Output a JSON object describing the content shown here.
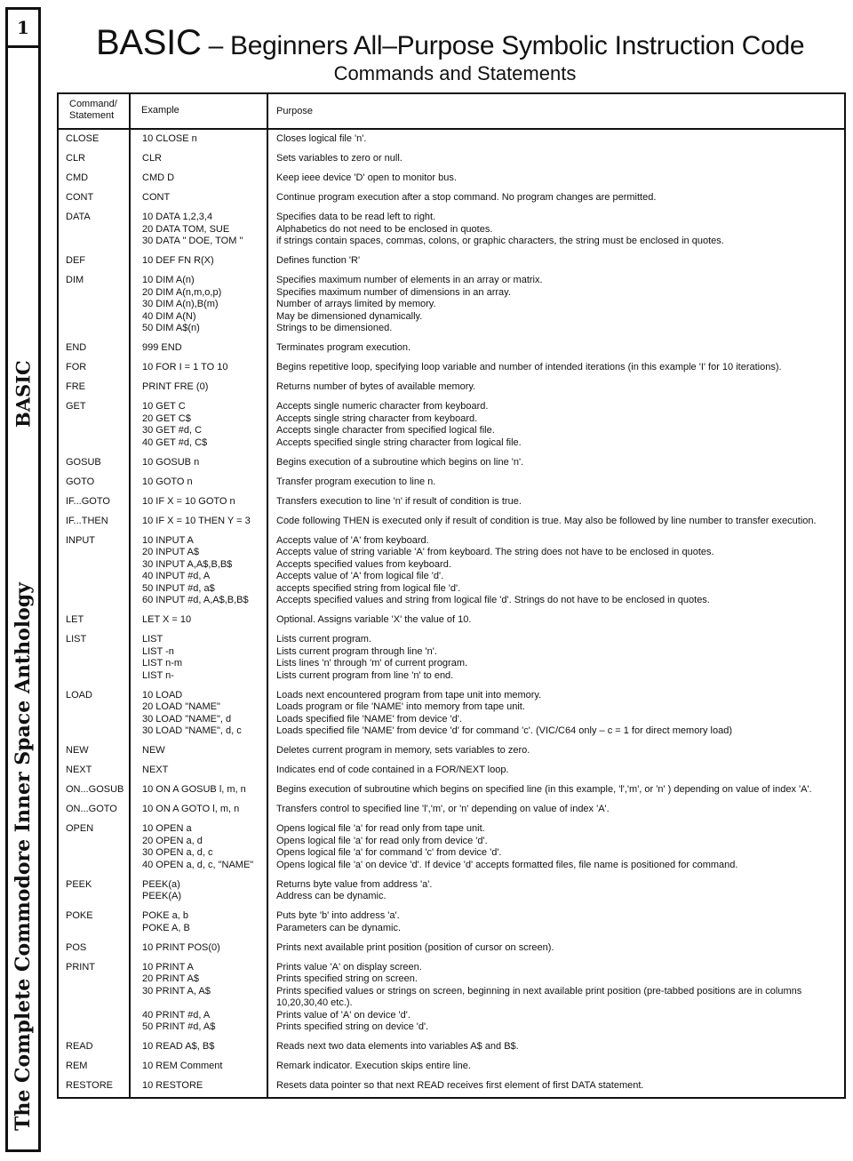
{
  "sidebar": {
    "page_number": "1",
    "section": "BASIC",
    "book_title": "The Complete Commodore Inner Space Anthology"
  },
  "header": {
    "title_main": "BASIC",
    "title_rest": " – Beginners All–Purpose Symbolic Instruction Code",
    "subtitle": "Commands and Statements"
  },
  "table": {
    "columns": [
      "Command/ Statement",
      "Example",
      "Purpose"
    ],
    "rows": [
      {
        "cmd": "CLOSE",
        "example": [
          "10 CLOSE n"
        ],
        "purpose": [
          "Closes logical file 'n'."
        ]
      },
      {
        "cmd": "CLR",
        "example": [
          "CLR"
        ],
        "purpose": [
          "Sets variables to zero or null."
        ]
      },
      {
        "cmd": "CMD",
        "example": [
          "CMD D"
        ],
        "purpose": [
          "Keep ieee device 'D' open to monitor bus."
        ]
      },
      {
        "cmd": "CONT",
        "example": [
          "CONT"
        ],
        "purpose": [
          "Continue program execution after a stop command. No program changes are permitted."
        ]
      },
      {
        "cmd": "DATA",
        "example": [
          "10 DATA 1,2,3,4",
          "20 DATA TOM, SUE",
          "30 DATA \" DOE, TOM \""
        ],
        "purpose": [
          "Specifies data to be read left to right.",
          "Alphabetics do not need to be enclosed in quotes.",
          "if strings contain spaces, commas, colons, or graphic characters, the string must be enclosed in quotes."
        ]
      },
      {
        "cmd": "DEF",
        "example": [
          "10 DEF FN R(X)"
        ],
        "purpose": [
          "Defines function 'R'"
        ]
      },
      {
        "cmd": "DIM",
        "example": [
          "10 DIM A(n)",
          "20 DIM A(n,m,o,p)",
          "30 DIM A(n),B(m)",
          "40 DIM A(N)",
          "50 DIM A$(n)"
        ],
        "purpose": [
          "Specifies maximum number of elements in an array or matrix.",
          "Specifies maximum number of dimensions in an array.",
          "Number of arrays limited by memory.",
          "May be dimensioned dynamically.",
          "Strings to be dimensioned."
        ]
      },
      {
        "cmd": "END",
        "example": [
          "999 END"
        ],
        "purpose": [
          "Terminates program execution."
        ]
      },
      {
        "cmd": "FOR",
        "example": [
          "10 FOR I = 1 TO 10"
        ],
        "purpose": [
          "Begins repetitive loop, specifying loop variable and number of intended iterations (in this example 'I' for 10 iterations)."
        ]
      },
      {
        "cmd": "FRE",
        "example": [
          "PRINT FRE (0)"
        ],
        "purpose": [
          "Returns number of bytes of available memory."
        ]
      },
      {
        "cmd": "GET",
        "example": [
          "10 GET C",
          "20 GET C$",
          "30 GET #d, C",
          "40 GET #d, C$"
        ],
        "purpose": [
          "Accepts single numeric character from keyboard.",
          "Accepts single string character from keyboard.",
          "Accepts single character from specified logical file.",
          "Accepts specified single string character from logical file."
        ]
      },
      {
        "cmd": "GOSUB",
        "example": [
          "10 GOSUB n"
        ],
        "purpose": [
          "Begins execution of a subroutine which begins on line 'n'."
        ]
      },
      {
        "cmd": "GOTO",
        "example": [
          "10 GOTO n"
        ],
        "purpose": [
          "Transfer program execution to line n."
        ]
      },
      {
        "cmd": "IF...GOTO",
        "example": [
          "10 IF X = 10 GOTO n"
        ],
        "purpose": [
          "Transfers execution to line 'n' if result of condition is true."
        ]
      },
      {
        "cmd": "IF...THEN",
        "example": [
          "10 IF X = 10 THEN Y = 3"
        ],
        "purpose": [
          "Code following THEN is executed only if result of condition is true. May also be followed by line number to transfer execution."
        ]
      },
      {
        "cmd": "INPUT",
        "example": [
          "10 INPUT A",
          "20 INPUT A$",
          "30 INPUT A,A$,B,B$",
          "40 INPUT #d, A",
          "50 INPUT #d, a$",
          "60 INPUT #d, A,A$,B,B$"
        ],
        "purpose": [
          "Accepts value of 'A' from keyboard.",
          "Accepts value of string variable 'A' from keyboard. The string does not have to be enclosed in quotes.",
          "Accepts specified values from keyboard.",
          "Accepts value of 'A' from logical file 'd'.",
          "accepts specified string from logical file 'd'.",
          "Accepts specified values and string from logical file 'd'. Strings do not have to be enclosed in quotes."
        ]
      },
      {
        "cmd": "LET",
        "example": [
          "LET X = 10"
        ],
        "purpose": [
          "Optional. Assigns variable 'X' the value of 10."
        ]
      },
      {
        "cmd": "LIST",
        "example": [
          "LIST",
          "LIST -n",
          "LIST n-m",
          "LIST n-"
        ],
        "purpose": [
          "Lists current program.",
          "Lists current program through line 'n'.",
          "Lists lines 'n' through 'm' of current program.",
          "Lists current program from line 'n' to end."
        ]
      },
      {
        "cmd": "LOAD",
        "example": [
          "10 LOAD",
          "20 LOAD \"NAME\"",
          "30 LOAD \"NAME\", d",
          "30 LOAD \"NAME\", d, c"
        ],
        "purpose": [
          "Loads next encountered program from tape unit into memory.",
          "Loads program or file 'NAME' into memory from tape unit.",
          "Loads specified file 'NAME' from device 'd'.",
          "Loads specified file 'NAME' from device 'd' for command 'c'. (VIC/C64 only – c = 1 for direct memory load)"
        ]
      },
      {
        "cmd": "NEW",
        "example": [
          "NEW"
        ],
        "purpose": [
          "Deletes current program in memory, sets variables to zero."
        ]
      },
      {
        "cmd": "NEXT",
        "example": [
          "NEXT"
        ],
        "purpose": [
          "Indicates end of code contained in a FOR/NEXT loop."
        ]
      },
      {
        "cmd": "ON...GOSUB",
        "example": [
          "10 ON A GOSUB l, m, n"
        ],
        "purpose": [
          "Begins execution of subroutine which begins on specified line (in this example, 'l','m', or 'n' ) depending on value of index 'A'."
        ]
      },
      {
        "cmd": "ON...GOTO",
        "example": [
          "10 ON A GOTO l, m, n"
        ],
        "purpose": [
          "Transfers control to specified line 'l','m', or 'n' depending on value of index 'A'."
        ]
      },
      {
        "cmd": "OPEN",
        "example": [
          "10 OPEN a",
          "20 OPEN a, d",
          "30 OPEN a, d, c",
          "40 OPEN a, d, c, \"NAME\""
        ],
        "purpose": [
          "Opens logical file 'a' for read only from tape unit.",
          "Opens logical file 'a' for read only from device 'd'.",
          "Opens logical file 'a' for command 'c' from device 'd'.",
          "Opens logical file 'a' on device 'd'. If device 'd' accepts formatted files, file name is positioned for command."
        ]
      },
      {
        "cmd": "PEEK",
        "example": [
          "PEEK(a)",
          "PEEK(A)"
        ],
        "purpose": [
          "Returns byte value from address 'a'.",
          "Address can be dynamic."
        ]
      },
      {
        "cmd": "POKE",
        "example": [
          "POKE a, b",
          "POKE A, B"
        ],
        "purpose": [
          "Puts byte 'b' into address 'a'.",
          "Parameters can be dynamic."
        ]
      },
      {
        "cmd": "POS",
        "example": [
          "10 PRINT POS(0)"
        ],
        "purpose": [
          "Prints next available print position (position of cursor on screen)."
        ]
      },
      {
        "cmd": "PRINT",
        "example": [
          "10 PRINT A",
          "20 PRINT A$",
          "30 PRINT A, A$",
          "",
          "40 PRINT #d, A",
          "50 PRINT #d, A$"
        ],
        "purpose": [
          "Prints value 'A' on display screen.",
          "Prints specified string on screen.",
          "Prints specified values or strings on screen, beginning in next available print position (pre-tabbed positions are in columns",
          "10,20,30,40 etc.).",
          "Prints value of 'A' on device 'd'.",
          "Prints specified string on device 'd'."
        ]
      },
      {
        "cmd": "READ",
        "example": [
          "10 READ A$, B$"
        ],
        "purpose": [
          "Reads next two data elements into variables A$ and B$."
        ]
      },
      {
        "cmd": "REM",
        "example": [
          "10 REM Comment"
        ],
        "purpose": [
          "Remark indicator. Execution skips entire line."
        ]
      },
      {
        "cmd": "RESTORE",
        "example": [
          "10 RESTORE"
        ],
        "purpose": [
          "Resets data pointer so that next READ receives first element of first DATA statement."
        ]
      }
    ]
  }
}
